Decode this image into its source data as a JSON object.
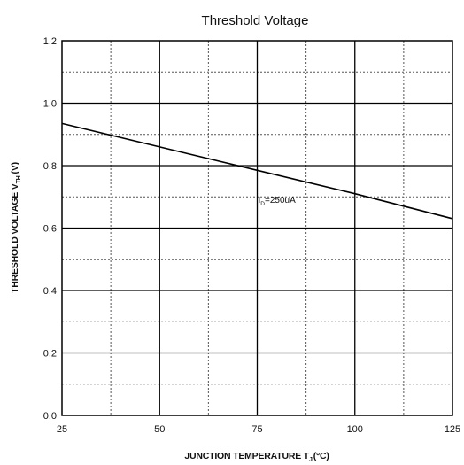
{
  "chart_data": {
    "type": "line",
    "title": "Threshold Voltage",
    "xlabel": {
      "main": "JUNCTION TEMPERATURE T",
      "sub": "J",
      "unit": "(°C)"
    },
    "ylabel": {
      "main": "THRESHOLD VOLTAGE V",
      "sub": "TH",
      "unit": "(V)"
    },
    "xlim": [
      25,
      125
    ],
    "ylim": [
      0.0,
      1.2
    ],
    "x_ticks": [
      25,
      50,
      75,
      100,
      125
    ],
    "x_tick_labels": [
      "25",
      "50",
      "75",
      "100",
      "125"
    ],
    "y_ticks": [
      0.0,
      0.2,
      0.4,
      0.6,
      0.8,
      1.0,
      1.2
    ],
    "y_tick_labels": [
      "0.0",
      "0.2",
      "0.4",
      "0.6",
      "0.8",
      "1.0",
      "1.2"
    ],
    "grid": true,
    "series": [
      {
        "x": [
          25,
          50,
          75,
          100,
          125
        ],
        "y": [
          0.935,
          0.86,
          0.785,
          0.71,
          0.63
        ]
      }
    ],
    "annotations": [
      {
        "main": "I",
        "sub": "D",
        "rest": "=250uA",
        "x": 75,
        "y": 0.69
      }
    ]
  }
}
